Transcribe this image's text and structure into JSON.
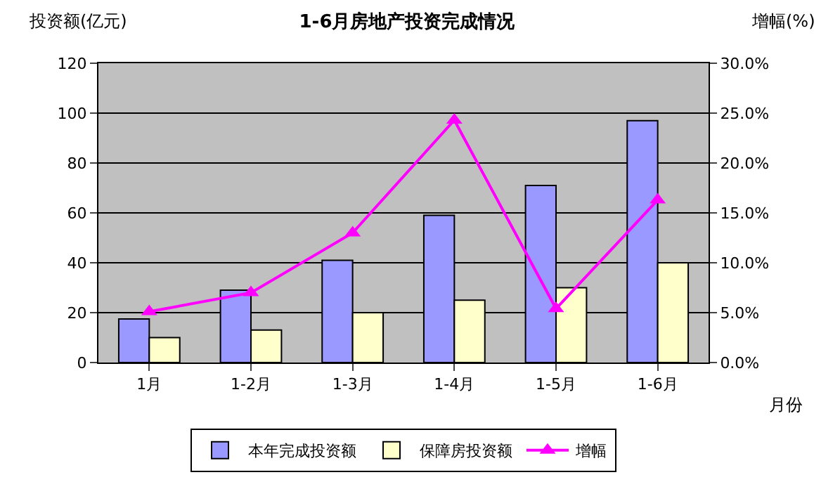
{
  "chart_data": {
    "type": "bar",
    "title": "1-6月房地产投资完成情况",
    "xlabel": "月份",
    "ylabel": "投资额(亿元)",
    "y2label": "增幅(%)",
    "categories": [
      "1月",
      "1-2月",
      "1-3月",
      "1-4月",
      "1-5月",
      "1-6月"
    ],
    "series": [
      {
        "name": "本年完成投资额",
        "color": "#9999ff",
        "values": [
          17.5,
          29,
          41,
          59,
          71,
          97
        ]
      },
      {
        "name": "保障房投资额",
        "color": "#ffffcc",
        "values": [
          10,
          13,
          20,
          25,
          30,
          40
        ]
      },
      {
        "name": "增幅",
        "type": "line",
        "axis": "y2",
        "color": "#ff00ff",
        "marker": "triangle",
        "values": [
          5.1,
          7.0,
          13.0,
          24.3,
          5.4,
          16.3
        ]
      }
    ],
    "ylim": [
      0,
      120
    ],
    "yticks": [
      0,
      20,
      40,
      60,
      80,
      100,
      120
    ],
    "y2lim": [
      0,
      30
    ],
    "y2ticks": [
      {
        "value": 0,
        "label": "0.0%"
      },
      {
        "value": 5,
        "label": "5.0%"
      },
      {
        "value": 10,
        "label": "10.0%"
      },
      {
        "value": 15,
        "label": "15.0%"
      },
      {
        "value": 20,
        "label": "20.0%"
      },
      {
        "value": 25,
        "label": "25.0%"
      },
      {
        "value": 30,
        "label": "30.0%"
      }
    ],
    "grid": "y",
    "legend": "bottom"
  }
}
